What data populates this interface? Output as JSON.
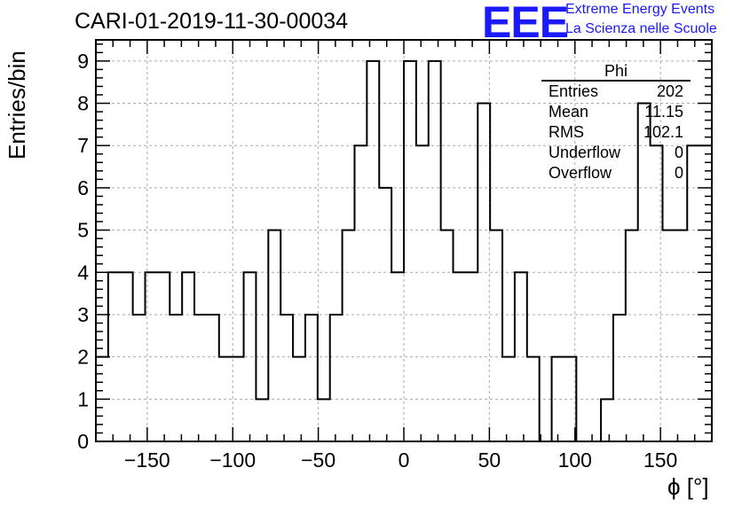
{
  "header": {
    "run_title": "CARI-01-2019-11-30-00034",
    "logo_text": "EEE",
    "logo_line1": "Extreme Energy Events",
    "logo_line2": "La Scienza nelle Scuole",
    "logo_color": "#1a1aff"
  },
  "stats": {
    "title": "Phi",
    "rows": [
      {
        "name": "Entries",
        "value": "202"
      },
      {
        "name": "Mean",
        "value": "11.15"
      },
      {
        "name": "RMS",
        "value": "102.1"
      },
      {
        "name": "Underflow",
        "value": "0"
      },
      {
        "name": "Overflow",
        "value": "0"
      }
    ]
  },
  "chart_data": {
    "type": "bar",
    "title": "CARI-01-2019-11-30-00034",
    "xlabel": "ϕ [°]",
    "ylabel": "Entries/bin",
    "xlim": [
      -180,
      180
    ],
    "ylim": [
      0,
      9.5
    ],
    "bin_width": 7.2,
    "x_ticks": [
      -150,
      -100,
      -50,
      0,
      50,
      100,
      150
    ],
    "x_tick_labels": [
      "−150",
      "−100",
      "−50",
      "0",
      "50",
      "100",
      "150"
    ],
    "y_ticks": [
      0,
      1,
      2,
      3,
      4,
      5,
      6,
      7,
      8,
      9
    ],
    "y_tick_labels": [
      "0",
      "1",
      "2",
      "3",
      "4",
      "5",
      "6",
      "7",
      "8",
      "9"
    ],
    "grid": true,
    "style": "step-histogram",
    "bin_low_edges": [
      -180,
      -172.8,
      -165.6,
      -158.4,
      -151.2,
      -144,
      -136.8,
      -129.6,
      -122.4,
      -115.2,
      -108,
      -100.8,
      -93.6,
      -86.4,
      -79.2,
      -72,
      -64.8,
      -57.6,
      -50.4,
      -43.2,
      -36,
      -28.8,
      -21.6,
      -14.4,
      -7.2,
      0,
      7.2,
      14.4,
      21.6,
      28.8,
      36,
      43.2,
      50.4,
      57.6,
      64.8,
      72,
      79.2,
      86.4,
      93.6,
      100.8,
      108,
      115.2,
      122.4,
      129.6,
      136.8,
      144,
      151.2,
      158.4,
      165.6,
      172.8
    ],
    "values": [
      2,
      4,
      4,
      3,
      4,
      4,
      3,
      4,
      3,
      3,
      2,
      2,
      4,
      1,
      5,
      3,
      2,
      3,
      1,
      3,
      5,
      7,
      9,
      6,
      4,
      9,
      7,
      9,
      5,
      4,
      4,
      8,
      5,
      2,
      4,
      2,
      0,
      2,
      2,
      0,
      0,
      1,
      3,
      5,
      8,
      7,
      5,
      5,
      7,
      7
    ]
  }
}
